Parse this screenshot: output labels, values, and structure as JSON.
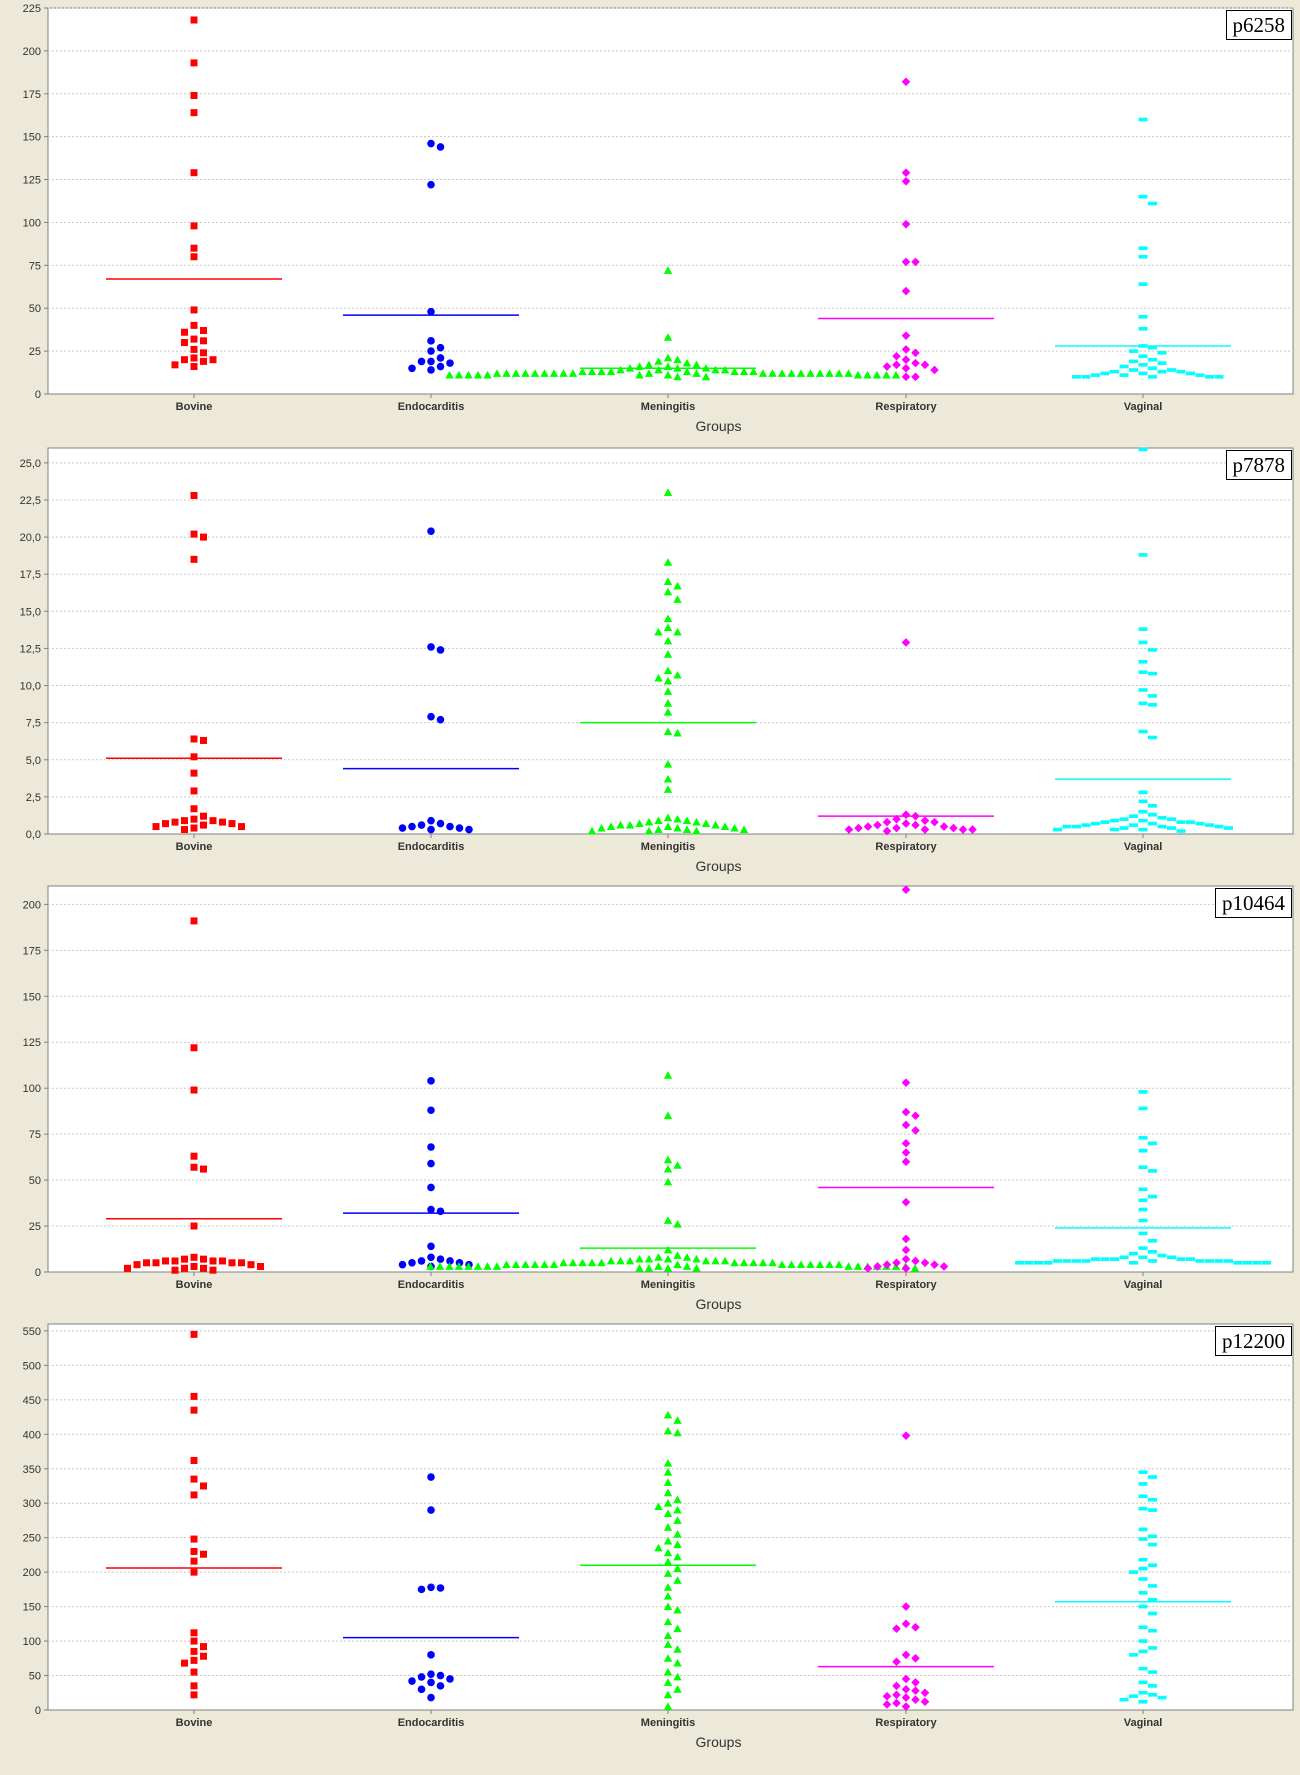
{
  "colors": {
    "Bovine": "#ff0000",
    "Endocarditis": "#0000ff",
    "Meningitis": "#00ff00",
    "Respiratory": "#ff00ff",
    "Vaginal": "#00ffff"
  },
  "markers": {
    "Bovine": "square",
    "Endocarditis": "circle",
    "Meningitis": "triangle",
    "Respiratory": "diamond",
    "Vaginal": "dash"
  },
  "chart_data": [
    {
      "type": "scatter",
      "title": "p6258",
      "xlabel": "Groups",
      "ylabel": "",
      "categories": [
        "Bovine",
        "Endocarditis",
        "Meningitis",
        "Respiratory",
        "Vaginal"
      ],
      "ylim": [
        0,
        225
      ],
      "yticks": [
        0,
        25,
        50,
        75,
        100,
        125,
        150,
        175,
        200,
        225
      ],
      "ytick_labels": [
        "0",
        "25",
        "50",
        "75",
        "100",
        "125",
        "150",
        "175",
        "200",
        "225"
      ],
      "means": [
        67,
        46,
        15,
        44,
        28
      ],
      "series": [
        {
          "name": "Bovine",
          "values": [
            218,
            193,
            174,
            164,
            129,
            98,
            85,
            80,
            49,
            40,
            37,
            36,
            32,
            31,
            30,
            26,
            24,
            21,
            20,
            20,
            19,
            17,
            16
          ]
        },
        {
          "name": "Endocarditis",
          "values": [
            146,
            144,
            122,
            48,
            31,
            27,
            25,
            21,
            19,
            19,
            18,
            16,
            15,
            14
          ]
        },
        {
          "name": "Meningitis",
          "values": [
            72,
            33,
            21,
            20,
            19,
            18,
            17,
            17,
            16,
            16,
            15,
            15,
            15,
            14,
            14,
            14,
            14,
            13,
            13,
            13,
            13,
            13,
            13,
            13,
            13,
            12,
            12,
            12,
            12,
            12,
            12,
            12,
            12,
            12,
            12,
            12,
            12,
            12,
            12,
            12,
            12,
            12,
            12,
            12,
            12,
            12,
            11,
            11,
            11,
            11,
            11,
            11,
            11,
            11,
            11,
            11,
            11,
            11,
            10,
            10
          ]
        },
        {
          "name": "Respiratory",
          "values": [
            182,
            129,
            124,
            99,
            77,
            77,
            60,
            34,
            26,
            24,
            22,
            20,
            18,
            17,
            17,
            16,
            15,
            14,
            10,
            10
          ]
        },
        {
          "name": "Vaginal",
          "values": [
            160,
            115,
            111,
            85,
            80,
            64,
            45,
            38,
            28,
            27,
            25,
            24,
            22,
            20,
            19,
            18,
            17,
            16,
            15,
            14,
            14,
            13,
            13,
            13,
            12,
            12,
            12,
            11,
            11,
            11,
            10,
            10,
            10,
            10,
            10
          ]
        }
      ]
    },
    {
      "type": "scatter",
      "title": "p7878",
      "xlabel": "Groups",
      "ylabel": "",
      "categories": [
        "Bovine",
        "Endocarditis",
        "Meningitis",
        "Respiratory",
        "Vaginal"
      ],
      "ylim": [
        0,
        26
      ],
      "yticks": [
        0,
        2.5,
        5,
        7.5,
        10,
        12.5,
        15,
        17.5,
        20,
        22.5,
        25
      ],
      "ytick_labels": [
        "0,0",
        "2,5",
        "5,0",
        "7,5",
        "10,0",
        "12,5",
        "15,0",
        "17,5",
        "20,0",
        "22,5",
        "25,0"
      ],
      "means": [
        5.1,
        4.4,
        7.5,
        1.2,
        3.7
      ],
      "series": [
        {
          "name": "Bovine",
          "values": [
            22.8,
            20.2,
            20.0,
            18.5,
            6.4,
            6.3,
            5.2,
            4.1,
            2.9,
            1.7,
            1.2,
            1.0,
            0.9,
            0.9,
            0.8,
            0.8,
            0.7,
            0.7,
            0.6,
            0.5,
            0.5,
            0.4,
            0.3
          ]
        },
        {
          "name": "Endocarditis",
          "values": [
            20.4,
            12.6,
            12.4,
            7.9,
            7.7,
            0.9,
            0.7,
            0.6,
            0.5,
            0.5,
            0.4,
            0.4,
            0.3,
            0.3
          ]
        },
        {
          "name": "Meningitis",
          "values": [
            23.0,
            18.3,
            17.0,
            16.7,
            16.3,
            15.8,
            14.5,
            13.9,
            13.6,
            13.6,
            13.0,
            12.1,
            11.0,
            10.7,
            10.5,
            10.3,
            9.6,
            8.8,
            8.2,
            6.9,
            6.8,
            4.7,
            3.7,
            3.0,
            1.1,
            1.0,
            0.9,
            0.9,
            0.8,
            0.8,
            0.7,
            0.7,
            0.6,
            0.6,
            0.6,
            0.5,
            0.5,
            0.5,
            0.4,
            0.4,
            0.4,
            0.3,
            0.3,
            0.3,
            0.2,
            0.2,
            0.2
          ]
        },
        {
          "name": "Respiratory",
          "values": [
            12.9,
            1.3,
            1.2,
            1.0,
            0.9,
            0.8,
            0.8,
            0.7,
            0.6,
            0.6,
            0.5,
            0.5,
            0.4,
            0.4,
            0.4,
            0.3,
            0.3,
            0.3,
            0.3,
            0.2
          ]
        },
        {
          "name": "Vaginal",
          "values": [
            25.9,
            18.8,
            13.8,
            12.9,
            12.4,
            11.6,
            10.9,
            10.8,
            9.7,
            9.3,
            8.8,
            8.7,
            6.9,
            6.5,
            2.8,
            2.2,
            1.9,
            1.5,
            1.3,
            1.2,
            1.1,
            1.0,
            1.0,
            0.9,
            0.9,
            0.8,
            0.8,
            0.8,
            0.7,
            0.7,
            0.7,
            0.6,
            0.6,
            0.6,
            0.5,
            0.5,
            0.5,
            0.5,
            0.4,
            0.4,
            0.4,
            0.3,
            0.3,
            0.3,
            0.2
          ]
        }
      ]
    },
    {
      "type": "scatter",
      "title": "p10464",
      "xlabel": "Groups",
      "ylabel": "",
      "categories": [
        "Bovine",
        "Endocarditis",
        "Meningitis",
        "Respiratory",
        "Vaginal"
      ],
      "ylim": [
        0,
        210
      ],
      "yticks": [
        0,
        25,
        50,
        75,
        100,
        125,
        150,
        175,
        200
      ],
      "ytick_labels": [
        "0",
        "25",
        "50",
        "75",
        "100",
        "125",
        "150",
        "175",
        "200"
      ],
      "means": [
        29,
        32,
        13,
        46,
        24
      ],
      "series": [
        {
          "name": "Bovine",
          "values": [
            191,
            122,
            99,
            63,
            57,
            56,
            25,
            8,
            7,
            7,
            6,
            6,
            6,
            6,
            5,
            5,
            5,
            5,
            4,
            4,
            3,
            3,
            2,
            2,
            2,
            1,
            1
          ]
        },
        {
          "name": "Endocarditis",
          "values": [
            104,
            88,
            68,
            59,
            46,
            34,
            33,
            14,
            8,
            7,
            6,
            6,
            5,
            5,
            4,
            4,
            3
          ]
        },
        {
          "name": "Meningitis",
          "values": [
            107,
            85,
            61,
            58,
            56,
            49,
            28,
            26,
            12,
            9,
            8,
            8,
            7,
            7,
            7,
            7,
            6,
            6,
            6,
            6,
            6,
            6,
            5,
            5,
            5,
            5,
            5,
            5,
            5,
            5,
            5,
            5,
            4,
            4,
            4,
            4,
            4,
            4,
            4,
            4,
            4,
            4,
            4,
            4,
            4,
            4,
            3,
            3,
            3,
            3,
            3,
            3,
            3,
            3,
            3,
            3,
            3,
            3,
            3,
            3,
            3,
            3,
            3,
            2,
            2,
            2,
            2,
            2
          ]
        },
        {
          "name": "Respiratory",
          "values": [
            208,
            103,
            87,
            85,
            80,
            77,
            70,
            65,
            60,
            38,
            18,
            12,
            7,
            6,
            5,
            5,
            4,
            4,
            3,
            3,
            2,
            2
          ]
        },
        {
          "name": "Vaginal",
          "values": [
            98,
            89,
            73,
            70,
            66,
            57,
            55,
            45,
            41,
            39,
            34,
            28,
            21,
            17,
            13,
            11,
            10,
            9,
            8,
            8,
            8,
            7,
            7,
            7,
            7,
            7,
            6,
            6,
            6,
            6,
            6,
            6,
            6,
            6,
            6,
            5,
            5,
            5,
            5,
            5,
            5,
            5,
            5,
            5
          ]
        }
      ]
    },
    {
      "type": "scatter",
      "title": "p12200",
      "xlabel": "Groups",
      "ylabel": "",
      "categories": [
        "Bovine",
        "Endocarditis",
        "Meningitis",
        "Respiratory",
        "Vaginal"
      ],
      "ylim": [
        0,
        560
      ],
      "yticks": [
        0,
        50,
        100,
        150,
        200,
        250,
        300,
        350,
        400,
        450,
        500,
        550
      ],
      "ytick_labels": [
        "0",
        "50",
        "100",
        "150",
        "200",
        "250",
        "300",
        "350",
        "400",
        "450",
        "500",
        "550"
      ],
      "means": [
        206,
        105,
        210,
        63,
        157
      ],
      "series": [
        {
          "name": "Bovine",
          "values": [
            545,
            455,
            435,
            362,
            335,
            325,
            312,
            248,
            230,
            226,
            216,
            200,
            112,
            100,
            92,
            85,
            78,
            72,
            68,
            55,
            35,
            22
          ]
        },
        {
          "name": "Endocarditis",
          "values": [
            338,
            290,
            178,
            177,
            175,
            80,
            52,
            50,
            48,
            45,
            42,
            40,
            35,
            30,
            18
          ]
        },
        {
          "name": "Meningitis",
          "values": [
            428,
            420,
            405,
            402,
            358,
            345,
            330,
            315,
            305,
            300,
            295,
            290,
            285,
            275,
            265,
            255,
            245,
            240,
            235,
            228,
            222,
            215,
            205,
            198,
            188,
            178,
            165,
            150,
            145,
            128,
            118,
            108,
            95,
            88,
            75,
            68,
            55,
            48,
            40,
            30,
            22,
            5
          ]
        },
        {
          "name": "Respiratory",
          "values": [
            398,
            150,
            125,
            120,
            118,
            80,
            75,
            70,
            45,
            40,
            35,
            30,
            28,
            25,
            22,
            20,
            18,
            15,
            12,
            10,
            8,
            5
          ]
        },
        {
          "name": "Vaginal",
          "values": [
            345,
            338,
            328,
            310,
            305,
            292,
            290,
            262,
            252,
            248,
            240,
            218,
            210,
            205,
            200,
            190,
            180,
            170,
            160,
            150,
            140,
            120,
            115,
            100,
            90,
            85,
            80,
            60,
            55,
            40,
            35,
            25,
            22,
            20,
            18,
            15,
            12
          ]
        }
      ]
    }
  ]
}
